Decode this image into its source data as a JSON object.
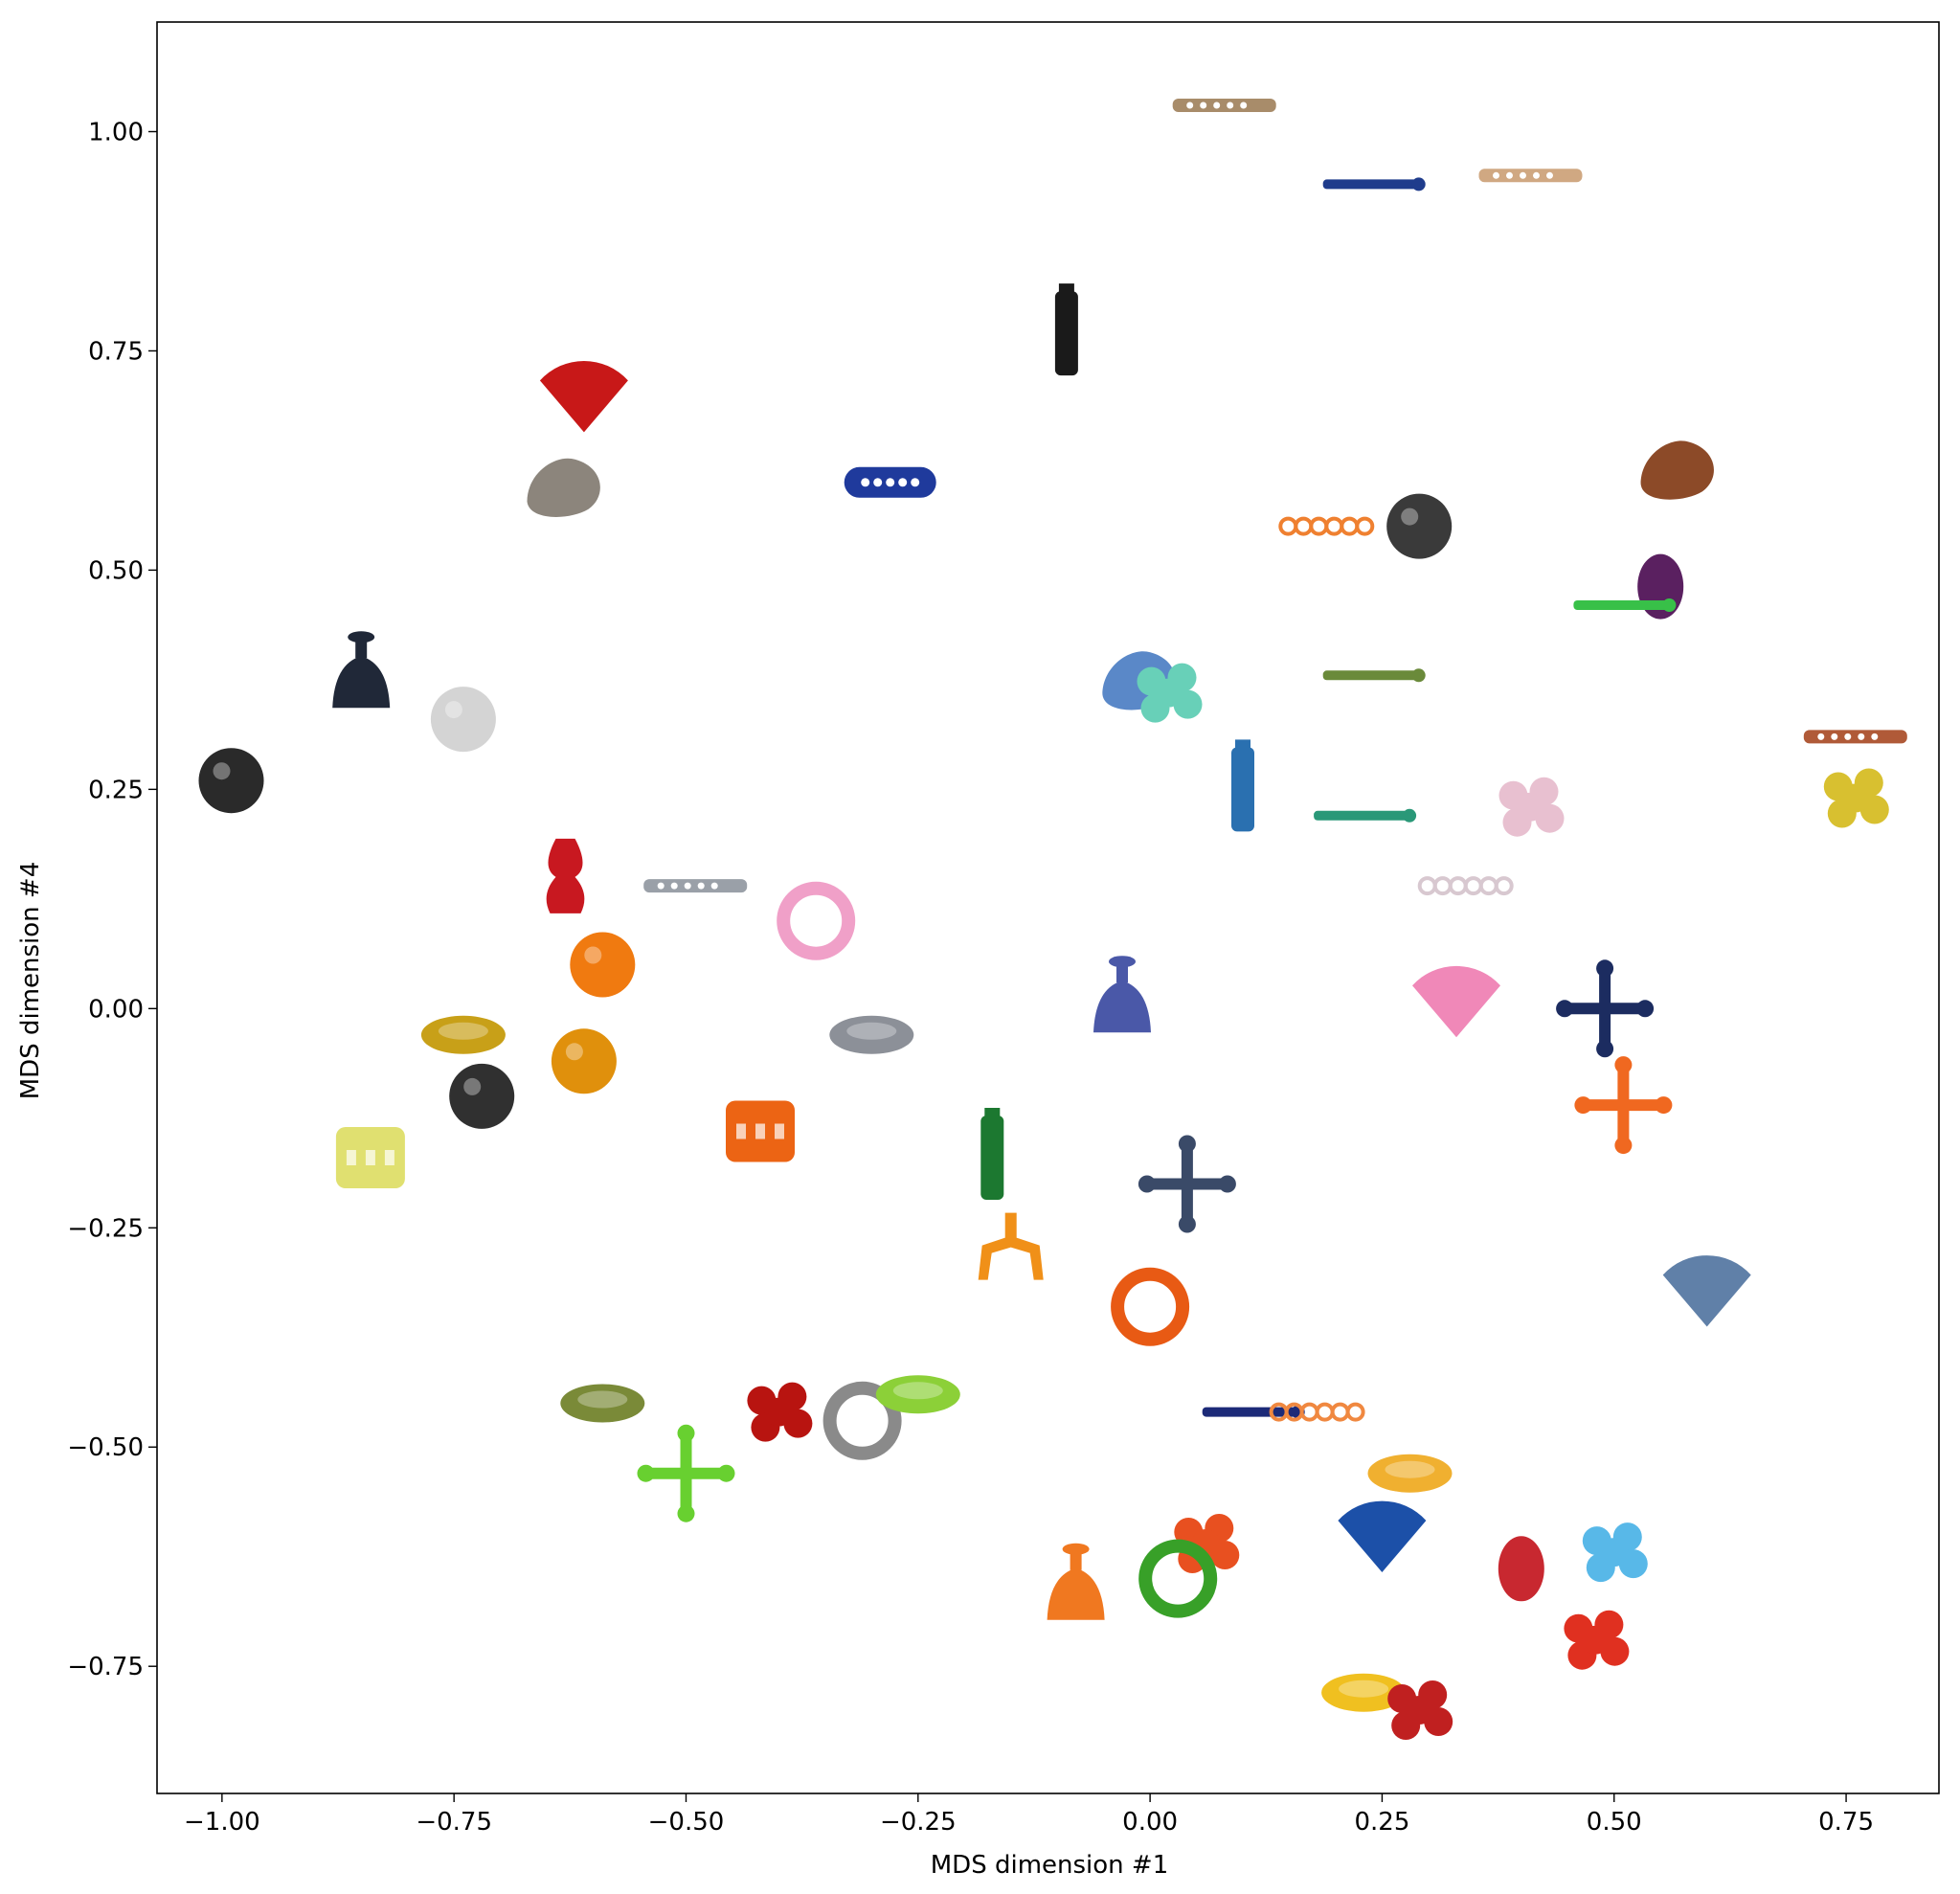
{
  "chart_data": {
    "type": "scatter",
    "title": "",
    "xlabel": "MDS dimension #1",
    "ylabel": "MDS dimension #4",
    "xlim": [
      -1.07,
      0.85
    ],
    "ylim": [
      -0.895,
      1.125
    ],
    "xticks": [
      -1.0,
      -0.75,
      -0.5,
      -0.25,
      0.0,
      0.25,
      0.5,
      0.75
    ],
    "xtick_labels": [
      "−1.00",
      "−0.75",
      "−0.50",
      "−0.25",
      "0.00",
      "0.25",
      "0.50",
      "0.75"
    ],
    "yticks": [
      -0.75,
      -0.5,
      -0.25,
      0.0,
      0.25,
      0.5,
      0.75,
      1.0
    ],
    "ytick_labels": [
      "−0.75",
      "−0.50",
      "−0.25",
      "0.00",
      "0.25",
      "0.50",
      "0.75",
      "1.00"
    ],
    "grid": false,
    "legend": "none",
    "marker_style": "object thumbnail images",
    "points": [
      {
        "x": 0.08,
        "y": 1.03,
        "color": "#a88c6a",
        "shape": "plank"
      },
      {
        "x": 0.24,
        "y": 0.94,
        "color": "#1f3c8c",
        "shape": "rod"
      },
      {
        "x": 0.41,
        "y": 0.95,
        "color": "#d0a882",
        "shape": "plank"
      },
      {
        "x": -0.09,
        "y": 0.77,
        "color": "#1a1a1a",
        "shape": "tower"
      },
      {
        "x": -0.61,
        "y": 0.69,
        "color": "#c81818",
        "shape": "fan"
      },
      {
        "x": -0.63,
        "y": 0.6,
        "color": "#8c857c",
        "shape": "blob"
      },
      {
        "x": -0.28,
        "y": 0.6,
        "color": "#1f3a9c",
        "shape": "capsule"
      },
      {
        "x": 0.19,
        "y": 0.55,
        "color": "#ef8030",
        "shape": "chain"
      },
      {
        "x": 0.29,
        "y": 0.55,
        "color": "#3a3a3a",
        "shape": "ball"
      },
      {
        "x": 0.57,
        "y": 0.62,
        "color": "#8c4a28",
        "shape": "blob"
      },
      {
        "x": 0.55,
        "y": 0.49,
        "color": "#5a2060",
        "shape": "egg"
      },
      {
        "x": 0.51,
        "y": 0.46,
        "color": "#38c048",
        "shape": "rod"
      },
      {
        "x": -0.85,
        "y": 0.38,
        "color": "#202838",
        "shape": "bell"
      },
      {
        "x": -0.74,
        "y": 0.33,
        "color": "#d4d4d4",
        "shape": "ball"
      },
      {
        "x": -0.99,
        "y": 0.26,
        "color": "#2a2a2a",
        "shape": "ball"
      },
      {
        "x": -0.01,
        "y": 0.38,
        "color": "#5a88c8",
        "shape": "blob"
      },
      {
        "x": 0.02,
        "y": 0.36,
        "color": "#68d0b8",
        "shape": "cluster"
      },
      {
        "x": 0.24,
        "y": 0.38,
        "color": "#6a8a3a",
        "shape": "rod"
      },
      {
        "x": 0.76,
        "y": 0.31,
        "color": "#b05a38",
        "shape": "plank"
      },
      {
        "x": 0.76,
        "y": 0.24,
        "color": "#d8c030",
        "shape": "cluster"
      },
      {
        "x": 0.1,
        "y": 0.25,
        "color": "#2a70b0",
        "shape": "tower"
      },
      {
        "x": 0.23,
        "y": 0.22,
        "color": "#2a9878",
        "shape": "rod"
      },
      {
        "x": 0.41,
        "y": 0.23,
        "color": "#e8c0d0",
        "shape": "cluster"
      },
      {
        "x": 0.34,
        "y": 0.14,
        "color": "#d8c8d0",
        "shape": "chain"
      },
      {
        "x": -0.63,
        "y": 0.15,
        "color": "#c81820",
        "shape": "vase"
      },
      {
        "x": -0.49,
        "y": 0.14,
        "color": "#9aa0a8",
        "shape": "plank"
      },
      {
        "x": -0.36,
        "y": 0.1,
        "color": "#f0a0c8",
        "shape": "ring"
      },
      {
        "x": -0.59,
        "y": 0.05,
        "color": "#f07a10",
        "shape": "ball"
      },
      {
        "x": -0.03,
        "y": 0.01,
        "color": "#4a58a8",
        "shape": "bell"
      },
      {
        "x": 0.33,
        "y": 0.0,
        "color": "#f088b8",
        "shape": "fan"
      },
      {
        "x": 0.49,
        "y": 0.0,
        "color": "#1c2c60",
        "shape": "cross"
      },
      {
        "x": -0.74,
        "y": -0.03,
        "color": "#c8a018",
        "shape": "disc"
      },
      {
        "x": -0.3,
        "y": -0.03,
        "color": "#8c9098",
        "shape": "disc"
      },
      {
        "x": -0.61,
        "y": -0.06,
        "color": "#e0900c",
        "shape": "ball"
      },
      {
        "x": -0.72,
        "y": -0.1,
        "color": "#303030",
        "shape": "ball"
      },
      {
        "x": 0.51,
        "y": -0.11,
        "color": "#f06820",
        "shape": "cross"
      },
      {
        "x": -0.84,
        "y": -0.17,
        "color": "#e0e070",
        "shape": "barrel"
      },
      {
        "x": -0.42,
        "y": -0.14,
        "color": "#ec6414",
        "shape": "barrel"
      },
      {
        "x": -0.17,
        "y": -0.17,
        "color": "#1c7830",
        "shape": "tower"
      },
      {
        "x": 0.04,
        "y": -0.2,
        "color": "#3a4a68",
        "shape": "cross"
      },
      {
        "x": -0.15,
        "y": -0.27,
        "color": "#f09018",
        "shape": "claw"
      },
      {
        "x": 0.6,
        "y": -0.33,
        "color": "#6080a8",
        "shape": "fan"
      },
      {
        "x": -0.0,
        "y": -0.34,
        "color": "#e85a14",
        "shape": "ring"
      },
      {
        "x": -0.59,
        "y": -0.45,
        "color": "#7a8a38",
        "shape": "disc"
      },
      {
        "x": -0.4,
        "y": -0.46,
        "color": "#b81410",
        "shape": "cluster"
      },
      {
        "x": -0.31,
        "y": -0.47,
        "color": "#8a8a8a",
        "shape": "ring"
      },
      {
        "x": -0.25,
        "y": -0.44,
        "color": "#8cd038",
        "shape": "disc"
      },
      {
        "x": -0.5,
        "y": -0.53,
        "color": "#68d030",
        "shape": "cross"
      },
      {
        "x": 0.11,
        "y": -0.46,
        "color": "#1c2a78",
        "shape": "rod"
      },
      {
        "x": 0.18,
        "y": -0.46,
        "color": "#f08840",
        "shape": "chain"
      },
      {
        "x": 0.28,
        "y": -0.53,
        "color": "#f0b030",
        "shape": "disc"
      },
      {
        "x": 0.25,
        "y": -0.61,
        "color": "#1c50a8",
        "shape": "fan"
      },
      {
        "x": 0.06,
        "y": -0.61,
        "color": "#e85020",
        "shape": "cluster"
      },
      {
        "x": 0.03,
        "y": -0.65,
        "color": "#38a028",
        "shape": "ring"
      },
      {
        "x": -0.08,
        "y": -0.66,
        "color": "#f07820",
        "shape": "bell"
      },
      {
        "x": 0.4,
        "y": -0.63,
        "color": "#c82830",
        "shape": "egg"
      },
      {
        "x": 0.5,
        "y": -0.62,
        "color": "#58b8e8",
        "shape": "cluster"
      },
      {
        "x": 0.48,
        "y": -0.72,
        "color": "#e03020",
        "shape": "cluster"
      },
      {
        "x": 0.23,
        "y": -0.78,
        "color": "#f0c020",
        "shape": "disc"
      },
      {
        "x": 0.29,
        "y": -0.8,
        "color": "#c02020",
        "shape": "cluster"
      }
    ]
  }
}
